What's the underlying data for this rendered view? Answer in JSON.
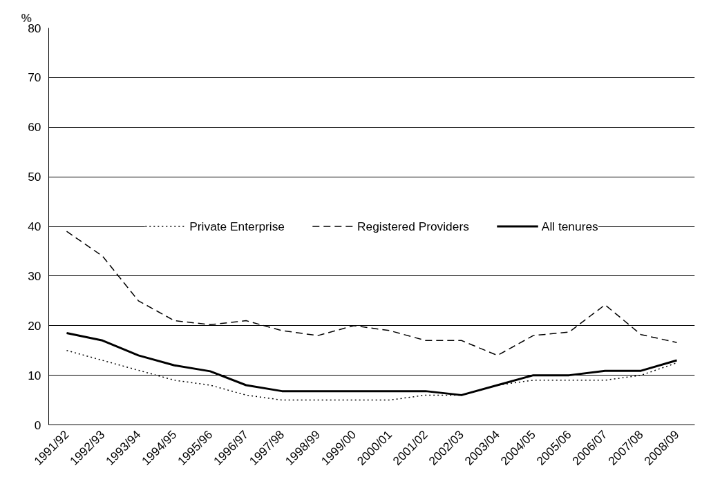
{
  "chart_data": {
    "type": "line",
    "ylabel": "%",
    "categories": [
      "1991/92",
      "1992/93",
      "1993/94",
      "1994/95",
      "1995/96",
      "1996/97",
      "1997/98",
      "1998/99",
      "1999/00",
      "2000/01",
      "2001/02",
      "2002/03",
      "2003/04",
      "2004/05",
      "2005/06",
      "2006/07",
      "2007/08",
      "2008/09"
    ],
    "series": [
      {
        "name": "Private Enterprise",
        "color": "#000000",
        "line_style": "dotted",
        "values": [
          15,
          13,
          11,
          9,
          8,
          6,
          5,
          5,
          5,
          5,
          6,
          6,
          8,
          9,
          9,
          9,
          10,
          12.5
        ]
      },
      {
        "name": "Registered Providers",
        "color": "#000000",
        "line_style": "dashed",
        "values": [
          39,
          34,
          25,
          21,
          20.2,
          21,
          19,
          18,
          20,
          19,
          17,
          17,
          14,
          18,
          18.7,
          24.2,
          18.2,
          16.6
        ]
      },
      {
        "name": "All tenures",
        "color": "#000000",
        "line_style": "solid",
        "values": [
          18.5,
          17,
          14,
          12,
          10.8,
          8,
          6.8,
          6.8,
          6.8,
          6.8,
          6.8,
          6,
          8,
          10,
          10,
          10.9,
          10.9,
          13
        ]
      }
    ],
    "ylim": [
      0,
      80
    ],
    "yticks": [
      0,
      10,
      20,
      30,
      40,
      50,
      60,
      70,
      80
    ],
    "grid": "y",
    "legend": "center",
    "marker": "none"
  }
}
